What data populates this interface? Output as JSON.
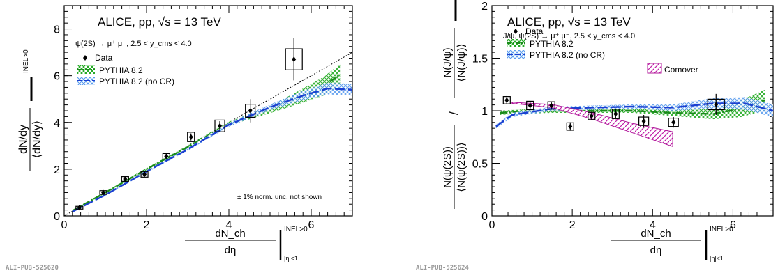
{
  "pub_ids": [
    "ALI-PUB-525620",
    "ALI-PUB-525624"
  ],
  "chart_data": [
    {
      "type": "scatter",
      "experiment_label": "ALICE, pp, √s = 13 TeV",
      "process_label": "ψ(2S) → μ⁺ μ⁻, 2.5 < y_cms < 4.0",
      "ylabel": "dN/dy / ⟨dN/dy⟩",
      "ylabel_superscript": "INEL>0",
      "xlabel": "dN_ch/dη / ⟨dN_ch/dη⟩",
      "xlabel_sup": "INEL>0",
      "xlabel_sub": "|η|<1",
      "xlim": [
        0,
        7
      ],
      "ylim": [
        0,
        9
      ],
      "xticks": [
        0,
        2,
        4,
        6
      ],
      "yticks": [
        0,
        2,
        4,
        6,
        8
      ],
      "note": "± 1% norm. unc. not shown",
      "legend": {
        "position": "top-left",
        "entries": [
          "Data",
          "PYTHIA 8.2",
          "PYTHIA 8.2 (no CR)"
        ]
      },
      "data": {
        "name": "Data",
        "x": [
          0.37,
          0.95,
          1.48,
          1.95,
          2.48,
          3.08,
          3.78,
          4.52,
          5.58
        ],
        "y": [
          0.35,
          1.0,
          1.58,
          1.78,
          2.55,
          3.38,
          3.85,
          4.5,
          6.7
        ],
        "syst": [
          0.06,
          0.08,
          0.1,
          0.12,
          0.12,
          0.2,
          0.25,
          0.28,
          0.45
        ],
        "stat": [
          0.05,
          0.07,
          0.08,
          0.1,
          0.1,
          0.15,
          0.2,
          0.5,
          0.9
        ],
        "colour": "#000000"
      },
      "models": [
        {
          "name": "PYTHIA 8.2",
          "colour": "#1a8a1a",
          "fill": "#33cc33",
          "x": [
            0.2,
            1,
            2,
            3,
            4,
            5,
            5.8,
            6.3,
            6.7
          ],
          "y": [
            0.22,
            1.0,
            2.0,
            2.95,
            3.95,
            4.55,
            5.15,
            5.55,
            6.05
          ],
          "band": [
            0.03,
            0.04,
            0.05,
            0.06,
            0.08,
            0.15,
            0.3,
            0.4,
            0.45
          ]
        },
        {
          "name": "PYTHIA 8.2 (no CR)",
          "colour": "#1a3fd0",
          "fill": "#66aaff",
          "x": [
            0.2,
            1,
            2,
            3,
            4,
            5,
            5.8,
            6.4,
            7
          ],
          "y": [
            0.18,
            0.9,
            1.9,
            2.85,
            3.9,
            4.65,
            5.15,
            5.45,
            5.4
          ],
          "band": [
            0.03,
            0.04,
            0.05,
            0.06,
            0.08,
            0.12,
            0.2,
            0.25,
            0.25
          ]
        }
      ],
      "reference_line": {
        "style": "dotted",
        "x": [
          0,
          7
        ],
        "y": [
          0,
          7
        ]
      }
    },
    {
      "type": "scatter",
      "experiment_label": "ALICE, pp, √s = 13 TeV",
      "process_label": "J/ψ, ψ(2S) → μ⁺ μ⁻, 2.5 < y_cms < 4.0",
      "ylabel": "N(ψ(2S)) / ⟨N(ψ(2S))⟩  /  N(J/ψ) / ⟨N(J/ψ)⟩",
      "ylabel_superscript": "INEL>0",
      "xlabel": "dN_ch/dη / ⟨dN_ch/dη⟩",
      "xlabel_sup": "INEL>0",
      "xlabel_sub": "|η|<1",
      "xlim": [
        0,
        7
      ],
      "ylim": [
        0,
        2
      ],
      "xticks": [
        0,
        2,
        4,
        6
      ],
      "yticks": [
        0,
        0.5,
        1,
        1.5,
        2
      ],
      "legend": {
        "position": "top-left",
        "entries": [
          "Data",
          "PYTHIA 8.2",
          "PYTHIA 8.2 (no CR)",
          "Comover"
        ]
      },
      "data": {
        "name": "Data",
        "x": [
          0.37,
          0.95,
          1.48,
          1.95,
          2.48,
          3.08,
          3.78,
          4.52,
          5.58
        ],
        "y": [
          1.1,
          1.05,
          1.05,
          0.85,
          0.95,
          0.97,
          0.9,
          0.89,
          1.06
        ],
        "syst": [
          0.035,
          0.04,
          0.035,
          0.035,
          0.035,
          0.045,
          0.04,
          0.04,
          0.05
        ],
        "stat": [
          0.04,
          0.035,
          0.03,
          0.04,
          0.035,
          0.05,
          0.06,
          0.05,
          0.1
        ],
        "colour": "#000000"
      },
      "models": [
        {
          "name": "PYTHIA 8.2",
          "colour": "#1a8a1a",
          "fill": "#33cc33",
          "x": [
            0.2,
            0.6,
            1.5,
            2.5,
            3.5,
            4.5,
            5.5,
            6.2,
            6.8
          ],
          "y": [
            0.98,
            0.99,
            1.0,
            1.0,
            1.0,
            0.98,
            0.97,
            1.02,
            1.1
          ],
          "band": [
            0.02,
            0.02,
            0.02,
            0.02,
            0.02,
            0.03,
            0.05,
            0.08,
            0.1
          ]
        },
        {
          "name": "PYTHIA 8.2 (no CR)",
          "colour": "#1a3fd0",
          "fill": "#66aaff",
          "x": [
            0.1,
            0.5,
            1.5,
            2.5,
            3.5,
            4.5,
            5.5,
            6.3,
            7
          ],
          "y": [
            0.85,
            0.96,
            1.02,
            1.03,
            1.04,
            1.03,
            1.07,
            1.07,
            1.0
          ],
          "band": [
            0.02,
            0.02,
            0.02,
            0.02,
            0.02,
            0.03,
            0.05,
            0.06,
            0.06
          ]
        },
        {
          "name": "Comover",
          "colour": "#b0189a",
          "fill": "#d040c0",
          "x": [
            0.5,
            1.5,
            2.5,
            3.5,
            4.5
          ],
          "y_high": [
            1.08,
            1.06,
            0.98,
            0.88,
            0.8
          ],
          "y_low": [
            1.07,
            1.03,
            0.92,
            0.79,
            0.66
          ]
        }
      ],
      "reference_line": {
        "style": "dotted",
        "x": [
          0,
          7
        ],
        "y": [
          1,
          1
        ]
      }
    }
  ]
}
